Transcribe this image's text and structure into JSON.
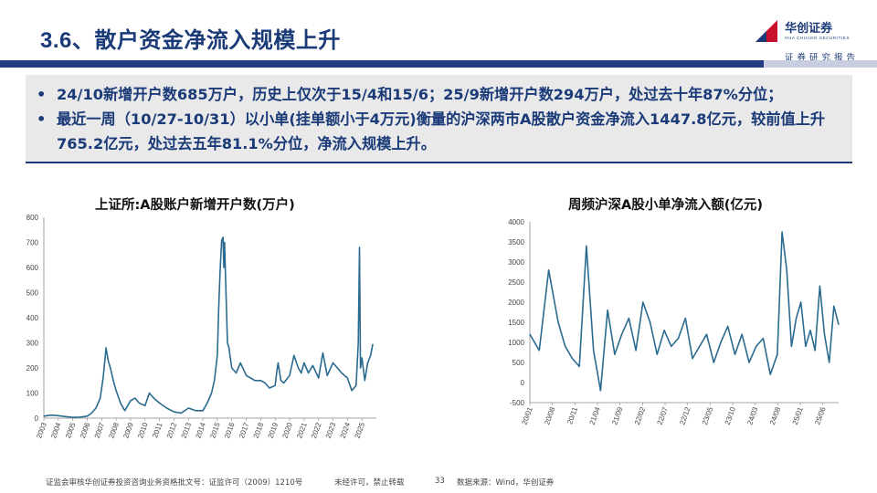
{
  "header": {
    "title": "3.6、散户资金净流入规模上升",
    "brand_cn": "华创证券",
    "brand_en": "HUA CHUANG SECURITIES",
    "subtag": "证券研究报告"
  },
  "summary": {
    "bullets": [
      "24/10新增开户数685万户，历史上仅次于15/4和15/6；25/9新增开户数294万户，处过去十年87%分位；",
      "最近一周（10/27-10/31）以小单(挂单额小于4万元)衡量的沪深两市A股散户资金净流入1447.8亿元，较前值上升765.2亿元，处过去五年81.1%分位，净流入规模上升。"
    ]
  },
  "footer": {
    "license": "证监会审核华创证券投资咨询业务资格批文号：证监许可（2009）1210号",
    "notice": "未经许可，禁止转载",
    "page": "33",
    "source": "数据来源：Wind，华创证券"
  },
  "colors": {
    "brand": "#1a3a78",
    "line": "#2a6b8f"
  },
  "chart_data": [
    {
      "type": "line",
      "title": "上证所:A股账户新增开户数(万户)",
      "ylim": [
        0,
        800
      ],
      "yticks": [
        0,
        100,
        200,
        300,
        400,
        500,
        600,
        700,
        800
      ],
      "xticks": [
        "2003",
        "2004",
        "2005",
        "2006",
        "2007",
        "2008",
        "2009",
        "2010",
        "2011",
        "2012",
        "2013",
        "2014",
        "2015",
        "2016",
        "2017",
        "2018",
        "2019",
        "2020",
        "2021",
        "2022",
        "2023",
        "2024",
        "2025"
      ],
      "xrange": [
        2003,
        2026
      ],
      "x": [
        2003,
        2003.5,
        2004,
        2004.5,
        2005,
        2005.5,
        2006,
        2006.3,
        2006.6,
        2006.9,
        2007.1,
        2007.3,
        2007.45,
        2007.6,
        2007.8,
        2008,
        2008.3,
        2008.6,
        2009,
        2009.3,
        2009.6,
        2010,
        2010.3,
        2010.6,
        2011,
        2011.5,
        2012,
        2012.5,
        2013,
        2013.5,
        2014,
        2014.3,
        2014.6,
        2014.8,
        2015.0,
        2015.1,
        2015.2,
        2015.3,
        2015.4,
        2015.45,
        2015.5,
        2015.6,
        2015.7,
        2015.8,
        2016,
        2016.3,
        2016.6,
        2017,
        2017.3,
        2017.6,
        2018,
        2018.3,
        2018.6,
        2019,
        2019.1,
        2019.2,
        2019.4,
        2019.6,
        2020,
        2020.3,
        2020.6,
        2020.8,
        2021,
        2021.3,
        2021.6,
        2022,
        2022.3,
        2022.6,
        2023,
        2023.3,
        2023.6,
        2024,
        2024.3,
        2024.6,
        2024.75,
        2024.83,
        2024.9,
        2025,
        2025.2,
        2025.4,
        2025.6,
        2025.75
      ],
      "y": [
        8,
        12,
        10,
        6,
        3,
        4,
        8,
        20,
        40,
        80,
        160,
        280,
        230,
        200,
        150,
        110,
        60,
        30,
        70,
        80,
        60,
        50,
        100,
        80,
        60,
        40,
        25,
        20,
        40,
        30,
        30,
        60,
        100,
        150,
        250,
        450,
        600,
        710,
        720,
        600,
        700,
        500,
        300,
        280,
        200,
        180,
        220,
        170,
        160,
        150,
        150,
        140,
        120,
        130,
        180,
        220,
        150,
        140,
        170,
        250,
        200,
        180,
        220,
        180,
        210,
        160,
        260,
        170,
        220,
        200,
        180,
        160,
        110,
        130,
        300,
        680,
        200,
        240,
        150,
        220,
        250,
        294
      ]
    },
    {
      "type": "line",
      "title": "周频沪深A股小单净流入额(亿元)",
      "ylim": [
        -500,
        4000
      ],
      "yticks": [
        -500,
        0,
        500,
        1000,
        1500,
        2000,
        2500,
        3000,
        3500,
        4000
      ],
      "xticks": [
        "20/01",
        "20/08",
        "20/11",
        "21/04",
        "21/09",
        "22/02",
        "22/07",
        "22/12",
        "23/05",
        "23/10",
        "24/03",
        "24/08",
        "25/01",
        "25/06"
      ],
      "x": [
        0,
        0.4,
        0.8,
        1.2,
        1.5,
        1.8,
        2.1,
        2.4,
        2.7,
        3.0,
        3.3,
        3.6,
        3.9,
        4.2,
        4.5,
        4.8,
        5.1,
        5.4,
        5.7,
        6.0,
        6.3,
        6.6,
        6.9,
        7.2,
        7.5,
        7.8,
        8.1,
        8.4,
        8.7,
        9.0,
        9.3,
        9.6,
        9.9,
        10.2,
        10.5,
        10.7,
        10.9,
        11.1,
        11.3,
        11.5,
        11.7,
        11.9,
        12.1,
        12.3,
        12.5,
        12.7,
        12.9,
        13.1
      ],
      "y": [
        1200,
        800,
        2800,
        1500,
        900,
        600,
        400,
        3400,
        800,
        -200,
        1800,
        700,
        1200,
        1600,
        800,
        2000,
        1500,
        700,
        1300,
        900,
        1100,
        1600,
        600,
        900,
        1200,
        500,
        1000,
        1400,
        700,
        1200,
        500,
        900,
        1100,
        200,
        700,
        3750,
        2800,
        900,
        1600,
        2000,
        900,
        1300,
        800,
        2400,
        1200,
        500,
        1900,
        1447.8
      ]
    }
  ]
}
